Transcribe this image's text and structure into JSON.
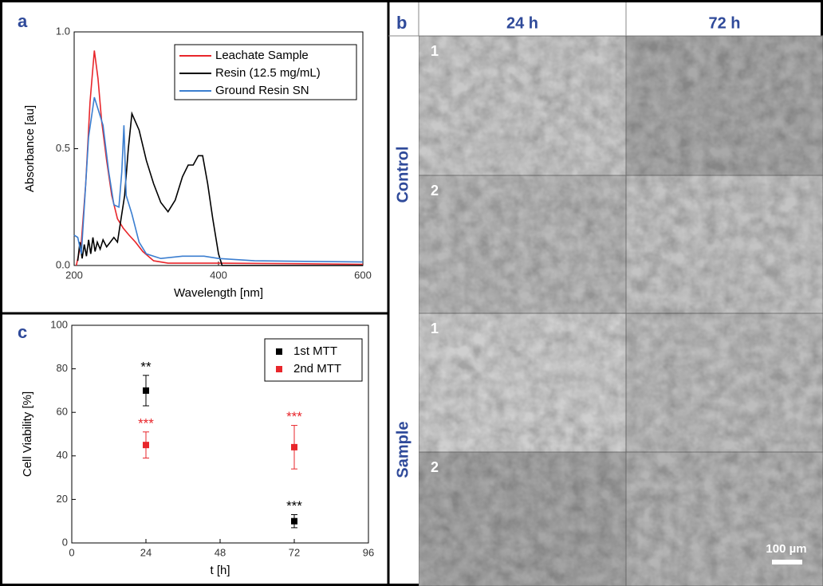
{
  "panel_labels": [
    "a",
    "b",
    "c"
  ],
  "panel_b": {
    "columns": [
      "24 h",
      "72 h"
    ],
    "rows": [
      {
        "label": "Control",
        "images": [
          "1",
          "2"
        ]
      },
      {
        "label": "Sample",
        "images": [
          "1",
          "2"
        ]
      }
    ],
    "scale_bar": "100 µm"
  },
  "chart_data": [
    {
      "type": "line",
      "xlabel": "Wavelength [nm]",
      "ylabel": "Absorbance [au]",
      "xlim": [
        200,
        600
      ],
      "ylim": [
        0,
        1
      ],
      "xticks": [
        200,
        400,
        600
      ],
      "yticks": [
        {
          "value": 0,
          "label": "0.0"
        },
        0.5,
        {
          "value": 1,
          "label": "1.0"
        }
      ],
      "legend": "upper right",
      "series": [
        {
          "name": "Leachate Sample",
          "color": "#e8262b",
          "x": [
            203,
            210,
            216,
            222,
            228,
            233,
            238,
            245,
            252,
            260,
            268,
            276,
            285,
            295,
            310,
            330,
            400,
            500,
            600
          ],
          "values": [
            0.0,
            0.1,
            0.35,
            0.7,
            0.92,
            0.8,
            0.62,
            0.45,
            0.3,
            0.2,
            0.16,
            0.13,
            0.1,
            0.06,
            0.02,
            0.01,
            0.01,
            0.008,
            0.005
          ]
        },
        {
          "name": "Resin (12.5 mg/mL)",
          "color": "#000000",
          "x": [
            205,
            208,
            211,
            214,
            217,
            220,
            223,
            226,
            229,
            232,
            236,
            240,
            245,
            250,
            255,
            260,
            265,
            270,
            275,
            280,
            290,
            300,
            310,
            320,
            330,
            340,
            350,
            358,
            365,
            372,
            378,
            385,
            392,
            400,
            405,
            420,
            600
          ],
          "values": [
            0.02,
            0.1,
            0.03,
            0.09,
            0.04,
            0.11,
            0.05,
            0.12,
            0.06,
            0.1,
            0.07,
            0.11,
            0.08,
            0.1,
            0.12,
            0.1,
            0.2,
            0.3,
            0.5,
            0.65,
            0.58,
            0.45,
            0.35,
            0.27,
            0.23,
            0.28,
            0.38,
            0.43,
            0.43,
            0.47,
            0.47,
            0.35,
            0.2,
            0.05,
            0.0,
            0.0,
            0.0
          ]
        },
        {
          "name": "Ground Resin SN",
          "color": "#3b7ed0",
          "x": [
            200,
            205,
            210,
            215,
            220,
            228,
            235,
            240,
            248,
            255,
            262,
            266,
            269,
            272,
            280,
            290,
            300,
            320,
            350,
            380,
            400,
            450,
            600
          ],
          "values": [
            0.13,
            0.12,
            0.05,
            0.3,
            0.55,
            0.72,
            0.65,
            0.6,
            0.4,
            0.26,
            0.25,
            0.4,
            0.6,
            0.3,
            0.22,
            0.1,
            0.05,
            0.03,
            0.04,
            0.04,
            0.03,
            0.02,
            0.015
          ]
        }
      ]
    },
    {
      "type": "scatter",
      "xlabel": "t [h]",
      "ylabel": "Cell Viability [%]",
      "xlim": [
        0,
        96
      ],
      "ylim": [
        0,
        100
      ],
      "xticks": [
        0,
        24,
        48,
        72,
        96
      ],
      "yticks": [
        0,
        20,
        40,
        60,
        80,
        100
      ],
      "legend": "upper right",
      "series": [
        {
          "name": "1st MTT",
          "color": "#000000",
          "x": [
            24,
            72
          ],
          "values": [
            70,
            10
          ],
          "errors": [
            7,
            3
          ],
          "annotations": [
            "**",
            "***"
          ]
        },
        {
          "name": "2nd MTT",
          "color": "#e8262b",
          "x": [
            24,
            72
          ],
          "values": [
            45,
            44
          ],
          "errors": [
            6,
            10
          ],
          "annotations": [
            "***",
            "***"
          ]
        }
      ]
    }
  ]
}
